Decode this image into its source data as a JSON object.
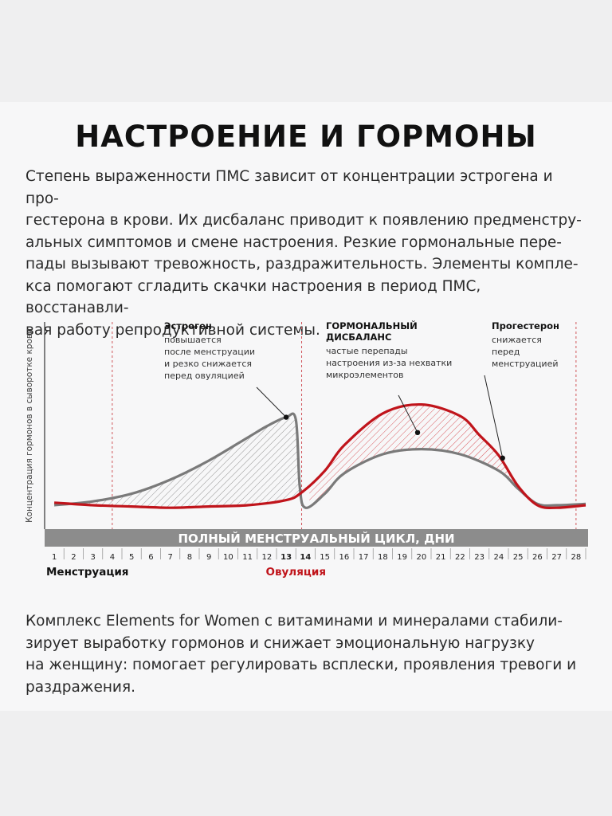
{
  "title": "НАСТРОЕНИЕ И ГОРМОНЫ",
  "intro": "Степень выраженности ПМС зависит от концентрации эстрогена и про-\nгестерона в крови. Их дисбаланс приводит к появлению предменстру-\nальных симптомов и смене настроения. Резкие гормональные пере-\nпады вызывают тревожность, раздражительность. Элементы комплe-\nкса помогают сгладить скачки настроения в период ПМС, восстанавли-\nвая работу репродуктивной системы.",
  "outro": "Комплекс Elements for Women с витаминами и минералами стабили-\nзирует выработку гормонов и снижает эмоциональную нагрузку\nна женщину: помогает регулировать всплески, проявления тревоги и\nраздражения.",
  "chart_data": {
    "type": "line",
    "ylabel": "Концентрация гормонов в сыворотке крови",
    "xlabel": "ПОЛНЫЙ МЕНСТРУАЛЬНЫЙ ЦИКЛ, ДНИ",
    "x_ticks": [
      "1",
      "2",
      "3",
      "4",
      "5",
      "6",
      "7",
      "8",
      "9",
      "10",
      "11",
      "12",
      "13",
      "14",
      "15",
      "16",
      "17",
      "18",
      "19",
      "20",
      "21",
      "22",
      "23",
      "24",
      "25",
      "26",
      "27",
      "28"
    ],
    "highlight_days": [
      "13",
      "14"
    ],
    "phase_labels": [
      {
        "text": "Менструация",
        "day": 1
      },
      {
        "text": "Овуляция",
        "day": 13.5
      }
    ],
    "reference_lines_days": [
      4,
      13.8,
      28
    ],
    "series": [
      {
        "name": "Эстроген",
        "color": "#7a7a7a",
        "x": [
          1,
          3,
          5,
          7,
          9,
          11,
          12,
          13,
          13.5,
          13.7,
          14,
          15,
          16,
          18,
          20,
          22,
          24,
          25,
          26,
          27,
          28.5
        ],
        "y": [
          0.05,
          0.08,
          0.14,
          0.25,
          0.4,
          0.58,
          0.67,
          0.74,
          0.72,
          0.2,
          0.03,
          0.14,
          0.3,
          0.45,
          0.49,
          0.45,
          0.32,
          0.18,
          0.06,
          0.05,
          0.06
        ]
      },
      {
        "name": "Прогестерон",
        "color": "#c0141b",
        "x": [
          1,
          3,
          5,
          7,
          9,
          11,
          13,
          13.8,
          15,
          16,
          18,
          20,
          22,
          23,
          24,
          25,
          26,
          27,
          28.5
        ],
        "y": [
          0.07,
          0.05,
          0.04,
          0.03,
          0.04,
          0.05,
          0.09,
          0.15,
          0.32,
          0.52,
          0.77,
          0.84,
          0.75,
          0.6,
          0.44,
          0.2,
          0.05,
          0.03,
          0.05
        ]
      }
    ],
    "annotations": [
      {
        "title": [
          "Эстроген"
        ],
        "text": [
          "повышается",
          "после менструации",
          "и резко снижается",
          "перед овуляцией"
        ],
        "target_day": 13,
        "target_y": 0.74
      },
      {
        "title": [
          "ГОРМОНАЛЬНЫЙ",
          "ДИСБАЛАНС"
        ],
        "text": [
          "частые перепады",
          "настроения из-за нехватки",
          "микроэлементов"
        ],
        "target_day": 19.8,
        "target_y": 0.62
      },
      {
        "title": [
          "Прогестерон"
        ],
        "text": [
          "снижается",
          "перед",
          "менструацией"
        ],
        "target_day": 24.2,
        "target_y": 0.42
      }
    ],
    "xlim": [
      0.5,
      28.5
    ],
    "ylim": [
      0,
      1
    ],
    "grid": false,
    "legend": "none"
  }
}
